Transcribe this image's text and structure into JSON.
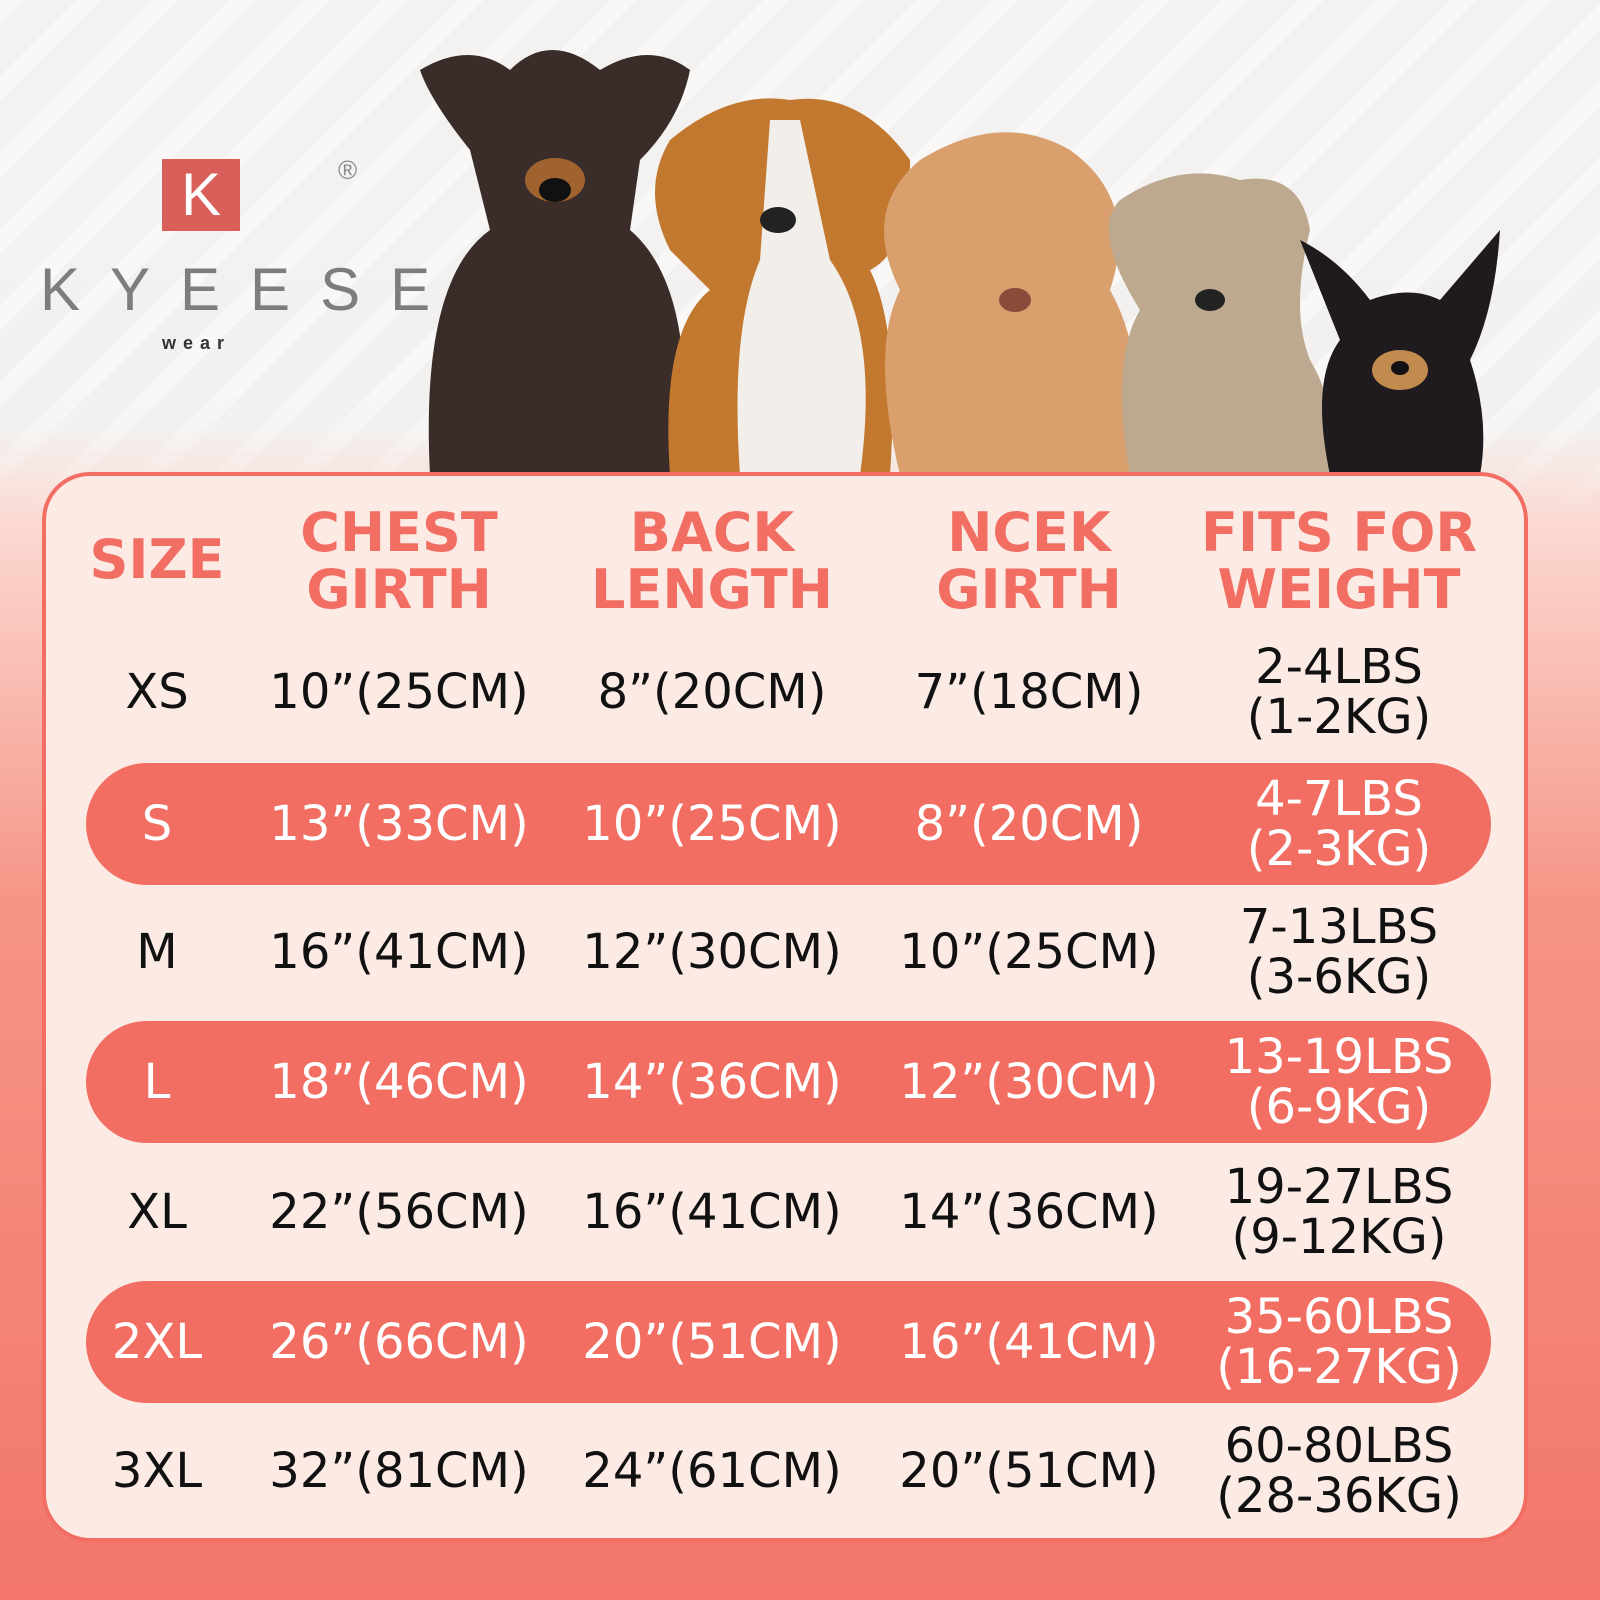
{
  "brand": {
    "mark": "K",
    "registered": "®",
    "name": "KYEESE",
    "sub": "wear",
    "accent": "#f26e63"
  },
  "dogs": [
    "doberman",
    "beagle",
    "poodle",
    "schnauzer",
    "chihuahua"
  ],
  "table": {
    "headers": [
      [
        "SIZE",
        ""
      ],
      [
        "CHEST",
        "GIRTH"
      ],
      [
        "BACK",
        "LENGTH"
      ],
      [
        "NCEK",
        "GIRTH"
      ],
      [
        "FITS FOR",
        "WEIGHT"
      ]
    ],
    "rows": [
      {
        "size": "XS",
        "chest": "10”(25CM)",
        "back": "8”(20CM)",
        "neck": "7”(18CM)",
        "weight": [
          "2-4LBS",
          "(1-2KG)"
        ],
        "highlight": false
      },
      {
        "size": "S",
        "chest": "13”(33CM)",
        "back": "10”(25CM)",
        "neck": "8”(20CM)",
        "weight": [
          "4-7LBS",
          "(2-3KG)"
        ],
        "highlight": true
      },
      {
        "size": "M",
        "chest": "16”(41CM)",
        "back": "12”(30CM)",
        "neck": "10”(25CM)",
        "weight": [
          "7-13LBS",
          "(3-6KG)"
        ],
        "highlight": false
      },
      {
        "size": "L",
        "chest": "18”(46CM)",
        "back": "14”(36CM)",
        "neck": "12”(30CM)",
        "weight": [
          "13-19LBS",
          "(6-9KG)"
        ],
        "highlight": true
      },
      {
        "size": "XL",
        "chest": "22”(56CM)",
        "back": "16”(41CM)",
        "neck": "14”(36CM)",
        "weight": [
          "19-27LBS",
          "(9-12KG)"
        ],
        "highlight": false
      },
      {
        "size": "2XL",
        "chest": "26”(66CM)",
        "back": "20”(51CM)",
        "neck": "16”(41CM)",
        "weight": [
          "35-60LBS",
          "(16-27KG)"
        ],
        "highlight": true
      },
      {
        "size": "3XL",
        "chest": "32”(81CM)",
        "back": "24”(61CM)",
        "neck": "20”(51CM)",
        "weight": [
          "60-80LBS",
          "(28-36KG)"
        ],
        "highlight": false
      }
    ]
  }
}
